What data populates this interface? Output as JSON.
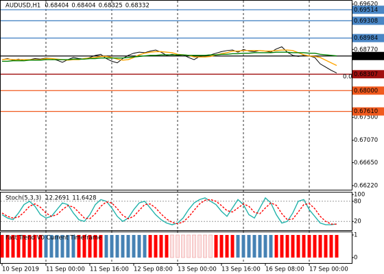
{
  "chart_data": [
    {
      "type": "line",
      "title": "AUDUSD,H1",
      "ohlc": [
        0.68404,
        0.68404,
        0.68325,
        0.68332
      ],
      "categories": [
        "10 Sep 2019",
        null,
        null,
        null,
        null,
        null,
        null,
        null,
        "11 Sep 00:00",
        null,
        null,
        null,
        null,
        null,
        null,
        null,
        "11 Sep 16:00",
        null,
        null,
        null,
        null,
        null,
        null,
        null,
        "12 Sep 08:00",
        null,
        null,
        null,
        null,
        null,
        null,
        null,
        "13 Sep 00:00",
        null,
        null,
        null,
        null,
        null,
        null,
        null,
        "13 Sep 16:00",
        null,
        null,
        null,
        null,
        null,
        null,
        null,
        "16 Sep 08:00",
        null,
        null,
        null,
        null,
        null,
        null,
        null,
        "17 Sep 00:00",
        null,
        null,
        null,
        null,
        null
      ],
      "series": [
        {
          "color": "#000000",
          "values": [
            0.6858,
            0.686,
            0.6857,
            0.6859,
            0.6856,
            0.6858,
            0.686,
            0.6859,
            0.6861,
            0.686,
            0.6857,
            0.6853,
            0.6858,
            0.6862,
            0.686,
            0.6859,
            0.6862,
            0.6866,
            0.6868,
            0.686,
            0.6855,
            0.6852,
            0.686,
            0.6866,
            0.687,
            0.6872,
            0.6871,
            0.6874,
            0.6876,
            0.6872,
            0.6866,
            0.6868,
            0.6866,
            0.6867,
            0.6862,
            0.6858,
            0.6864,
            0.6866,
            0.6867,
            0.687,
            0.6873,
            0.6875,
            0.6876,
            0.6872,
            0.6877,
            0.6874,
            0.6873,
            0.6875,
            0.6874,
            0.6872,
            0.6878,
            0.6882,
            0.6872,
            0.6866,
            0.6864,
            0.6866,
            0.6865,
            0.6862,
            0.685,
            0.6844,
            0.6838,
            0.6833
          ]
        },
        {
          "color": "#ffa500",
          "values": [
            0.6858,
            0.6859,
            0.6858,
            0.6858,
            0.6858,
            0.6858,
            0.6858,
            0.6858,
            0.686,
            0.686,
            0.6859,
            0.6858,
            0.6857,
            0.6858,
            0.6858,
            0.686,
            0.6861,
            0.6862,
            0.6864,
            0.6864,
            0.6862,
            0.6859,
            0.6857,
            0.6858,
            0.6862,
            0.6867,
            0.687,
            0.6872,
            0.6873,
            0.6873,
            0.6872,
            0.6871,
            0.6868,
            0.6867,
            0.6866,
            0.6863,
            0.6863,
            0.6863,
            0.6864,
            0.6867,
            0.6869,
            0.6871,
            0.6874,
            0.6874,
            0.6875,
            0.6875,
            0.6875,
            0.6875,
            0.6874,
            0.6874,
            0.6875,
            0.6876,
            0.6876,
            0.6875,
            0.6871,
            0.6867,
            0.6865,
            0.6864,
            0.6862,
            0.6857,
            0.6852,
            0.6847
          ]
        },
        {
          "color": "#008000",
          "values": [
            0.6855,
            0.6855,
            0.6856,
            0.6856,
            0.6856,
            0.6857,
            0.6857,
            0.6857,
            0.6858,
            0.6858,
            0.6858,
            0.6858,
            0.6858,
            0.6859,
            0.6859,
            0.6859,
            0.686,
            0.686,
            0.6861,
            0.6861,
            0.6861,
            0.6861,
            0.6861,
            0.6862,
            0.6863,
            0.6864,
            0.6865,
            0.6866,
            0.6866,
            0.6867,
            0.6867,
            0.6867,
            0.6867,
            0.6867,
            0.6866,
            0.6866,
            0.6866,
            0.6866,
            0.6867,
            0.6867,
            0.6868,
            0.6868,
            0.6869,
            0.6869,
            0.687,
            0.687,
            0.6871,
            0.6871,
            0.6871,
            0.6871,
            0.6872,
            0.6872,
            0.6872,
            0.6871,
            0.6871,
            0.6871,
            0.687,
            0.687,
            0.6868,
            0.6867,
            0.6866,
            0.6865
          ]
        }
      ],
      "levels": [
        {
          "value": 0.69514,
          "color": "#4a86c5"
        },
        {
          "value": 0.69308,
          "color": "#4a86c5"
        },
        {
          "value": 0.68984,
          "color": "#4a86c5"
        },
        {
          "value": 0.68648,
          "color": "#000000"
        },
        {
          "value": 0.68307,
          "color": "#a01010"
        },
        {
          "value": 0.68,
          "label": "0.68000",
          "color": "#f05a1e"
        },
        {
          "value": 0.6761,
          "label": "0.67610",
          "color": "#f05a1e"
        }
      ],
      "annotation": "0.0",
      "ylim": [
        0.66143,
        0.69697
      ],
      "yticks": [
        {
          "value": 0.6962,
          "label": "0.69620"
        },
        {
          "value": 0.6877,
          "label": "0.68770"
        },
        {
          "value": 0.675,
          "label": "0.67500"
        },
        {
          "value": 0.6707,
          "label": "0.67070"
        },
        {
          "value": 0.6665,
          "label": "0.66650"
        },
        {
          "value": 0.6622,
          "label": "0.66220"
        }
      ]
    },
    {
      "type": "line",
      "title": "Stoch(5,3,3)",
      "series": [
        {
          "color": "#20b2aa",
          "style": "solid",
          "values": [
            40,
            30,
            25,
            45,
            70,
            80,
            65,
            40,
            30,
            35,
            55,
            75,
            70,
            45,
            25,
            20,
            40,
            70,
            85,
            80,
            60,
            35,
            20,
            30,
            55,
            75,
            80,
            60,
            40,
            25,
            15,
            10,
            15,
            30,
            55,
            75,
            85,
            90,
            80,
            70,
            50,
            35,
            60,
            85,
            70,
            40,
            30,
            60,
            90,
            75,
            40,
            15,
            20,
            45,
            80,
            85,
            55,
            35,
            15,
            10,
            10,
            12.2691
          ]
        },
        {
          "color": "#ff0000",
          "style": "dashed",
          "values": [
            45,
            35,
            30,
            33,
            47,
            65,
            72,
            62,
            45,
            35,
            40,
            55,
            67,
            63,
            47,
            30,
            28,
            43,
            65,
            78,
            75,
            58,
            38,
            28,
            35,
            53,
            70,
            72,
            60,
            42,
            27,
            17,
            13,
            18,
            33,
            53,
            72,
            83,
            85,
            80,
            67,
            52,
            48,
            60,
            72,
            65,
            47,
            43,
            60,
            75,
            68,
            43,
            25,
            27,
            48,
            70,
            73,
            58,
            35,
            20,
            12,
            11.6428
          ]
        }
      ],
      "ylim": [
        0,
        100
      ],
      "yticks": [
        20,
        80,
        100
      ]
    },
    {
      "type": "bar",
      "title": "Fast Trend V0 Current Timeframe",
      "series": [
        {
          "color": "#ff0000",
          "values": [
            1,
            1,
            1,
            1,
            1,
            1,
            1,
            1,
            null,
            null,
            null,
            null,
            null,
            null,
            1,
            1,
            1,
            1,
            1,
            null,
            null,
            null,
            null,
            null,
            null,
            null,
            null,
            1,
            1,
            1,
            1,
            null,
            null,
            null,
            null,
            null,
            null,
            null,
            null,
            1,
            1,
            1,
            1,
            null,
            null,
            null,
            null,
            null,
            null,
            null,
            1,
            1,
            1,
            1,
            1,
            1,
            1,
            1,
            1,
            1,
            1,
            1
          ]
        },
        {
          "color": "#4682b4",
          "values": [
            null,
            null,
            null,
            null,
            null,
            null,
            null,
            null,
            1,
            1,
            1,
            1,
            1,
            1,
            null,
            null,
            null,
            null,
            null,
            1,
            1,
            1,
            1,
            1,
            1,
            1,
            1,
            null,
            null,
            null,
            null,
            null,
            null,
            null,
            null,
            null,
            null,
            null,
            null,
            null,
            null,
            null,
            null,
            1,
            1,
            1,
            1,
            1,
            1,
            1,
            null,
            null,
            null,
            null,
            null,
            null,
            null,
            null,
            null,
            null,
            null,
            null
          ]
        },
        {
          "color": "#fbe4e4",
          "values": [
            null,
            null,
            null,
            null,
            null,
            null,
            null,
            null,
            null,
            null,
            null,
            null,
            null,
            null,
            null,
            null,
            null,
            null,
            null,
            null,
            null,
            null,
            null,
            null,
            null,
            null,
            null,
            null,
            null,
            null,
            null,
            1,
            1,
            1,
            1,
            1,
            1,
            1,
            1,
            null,
            null,
            null,
            null,
            null,
            null,
            null,
            null,
            null,
            null,
            null,
            null,
            null,
            null,
            null,
            null,
            null,
            null,
            null,
            null,
            null,
            null,
            null
          ]
        }
      ],
      "ylim": [
        0,
        1
      ],
      "yticks": [
        0,
        1
      ]
    }
  ]
}
